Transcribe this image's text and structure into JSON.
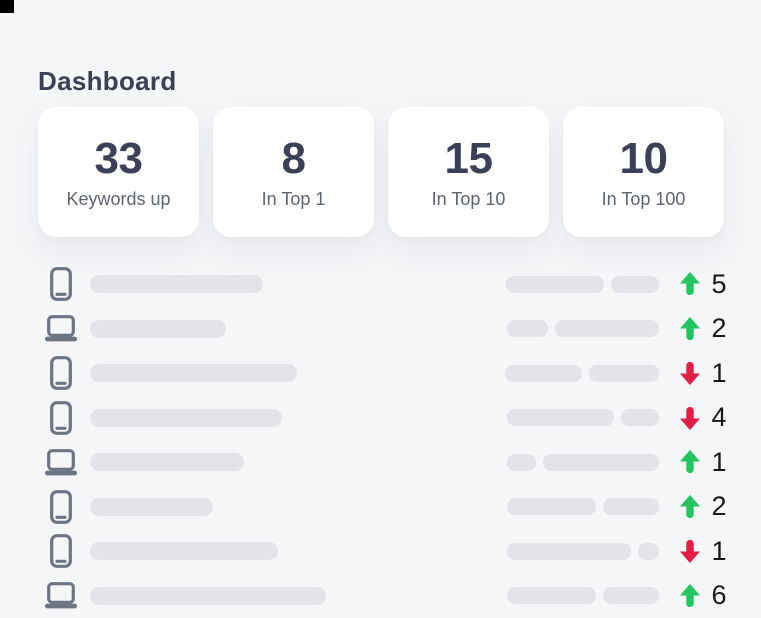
{
  "window": {
    "background": "#f5f6f8",
    "corner_artifact_color": "#000000"
  },
  "header": {
    "title": "Dashboard"
  },
  "stats": {
    "cards": [
      {
        "value": "33",
        "label": "Keywords up"
      },
      {
        "value": "8",
        "label": "In Top 1"
      },
      {
        "value": "15",
        "label": "In Top 10"
      },
      {
        "value": "10",
        "label": "In Top 100"
      }
    ]
  },
  "keyword_list": {
    "rows": [
      {
        "device": "phone",
        "keyword_bar_width": 173,
        "rank_bar_widths": [
          98,
          48
        ],
        "change": {
          "direction": "up",
          "value": "5"
        }
      },
      {
        "device": "laptop",
        "keyword_bar_width": 136,
        "rank_bar_widths": [
          41,
          104
        ],
        "change": {
          "direction": "up",
          "value": "2"
        }
      },
      {
        "device": "phone",
        "keyword_bar_width": 207,
        "rank_bar_widths": [
          77,
          70
        ],
        "change": {
          "direction": "down",
          "value": "1"
        }
      },
      {
        "device": "phone",
        "keyword_bar_width": 192,
        "rank_bar_widths": [
          107,
          38
        ],
        "change": {
          "direction": "down",
          "value": "4"
        }
      },
      {
        "device": "laptop",
        "keyword_bar_width": 154,
        "rank_bar_widths": [
          29,
          116
        ],
        "change": {
          "direction": "up",
          "value": "1"
        }
      },
      {
        "device": "phone",
        "keyword_bar_width": 123,
        "rank_bar_widths": [
          89,
          56
        ],
        "change": {
          "direction": "up",
          "value": "2"
        }
      },
      {
        "device": "phone",
        "keyword_bar_width": 188,
        "rank_bar_widths": [
          124,
          21
        ],
        "change": {
          "direction": "down",
          "value": "1"
        }
      },
      {
        "device": "laptop",
        "keyword_bar_width": 236,
        "rank_bar_widths": [
          89,
          56
        ],
        "change": {
          "direction": "up",
          "value": "6"
        }
      }
    ]
  },
  "colors": {
    "navy_text": "#3b4056",
    "label_gray": "#5d6472",
    "placeholder_bar": "#e3e4e9",
    "device_icon_gray": "#6d7482",
    "change_up_green": "#22c55e",
    "change_down_red": "#e11d48"
  }
}
